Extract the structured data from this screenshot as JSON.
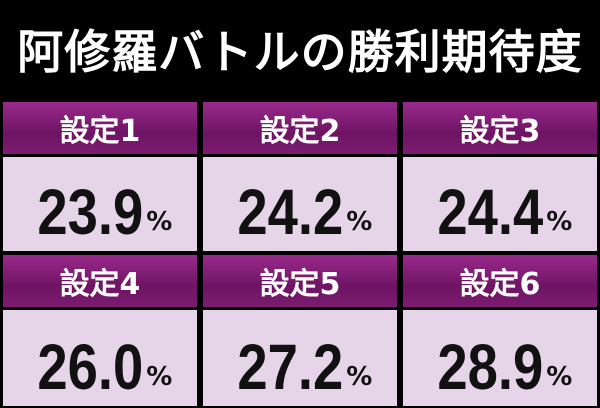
{
  "title": "阿修羅バトルの勝利期待度",
  "cells": [
    {
      "label": "設定1",
      "value": "23.9",
      "unit": "%"
    },
    {
      "label": "設定2",
      "value": "24.2",
      "unit": "%"
    },
    {
      "label": "設定3",
      "value": "24.4",
      "unit": "%"
    },
    {
      "label": "設定4",
      "value": "26.0",
      "unit": "%"
    },
    {
      "label": "設定5",
      "value": "27.2",
      "unit": "%"
    },
    {
      "label": "設定6",
      "value": "28.9",
      "unit": "%"
    }
  ]
}
